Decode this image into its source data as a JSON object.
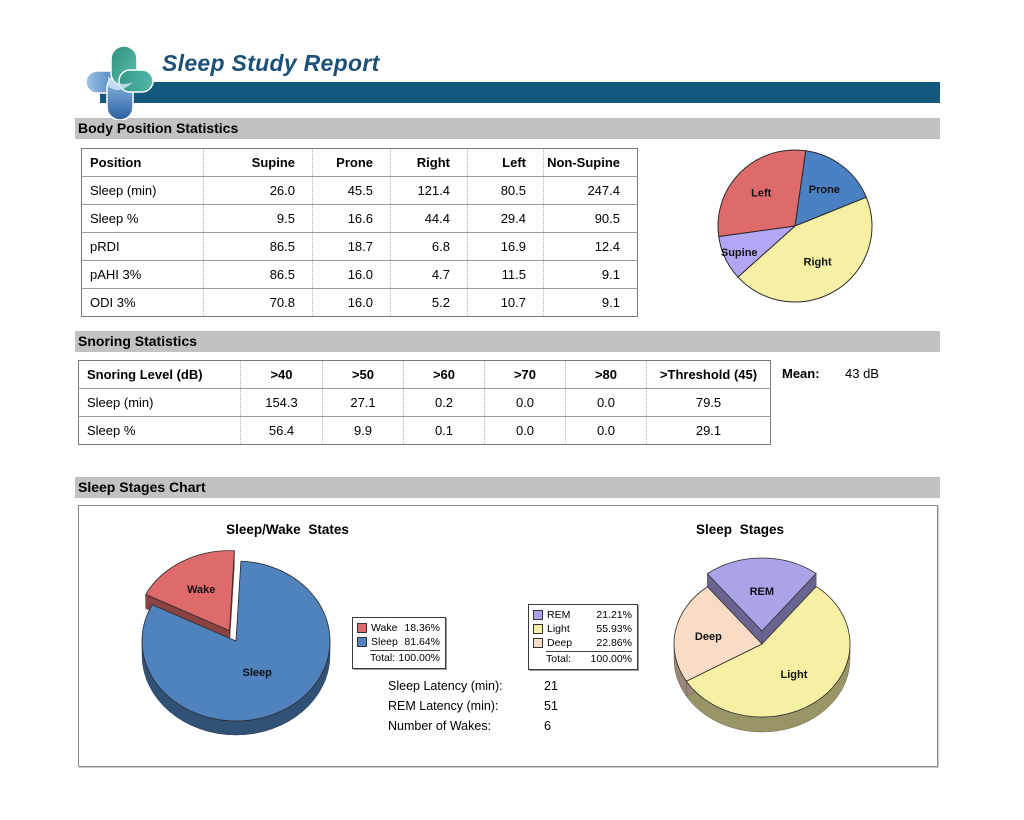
{
  "header": {
    "title": "Sleep Study Report"
  },
  "sections": {
    "body_position": {
      "heading": "Body Position Statistics",
      "table": {
        "columns": [
          "Position",
          "Supine",
          "Prone",
          "Right",
          "Left",
          "Non-Supine"
        ],
        "rows": [
          [
            "Sleep (min)",
            "26.0",
            "45.5",
            "121.4",
            "80.5",
            "247.4"
          ],
          [
            "Sleep %",
            "9.5",
            "16.6",
            "44.4",
            "29.4",
            "90.5"
          ],
          [
            "pRDI",
            "86.5",
            "18.7",
            "6.8",
            "16.9",
            "12.4"
          ],
          [
            "pAHI 3%",
            "86.5",
            "16.0",
            "4.7",
            "11.5",
            "9.1"
          ],
          [
            "ODI 3%",
            "70.8",
            "16.0",
            "5.2",
            "10.7",
            "9.1"
          ]
        ]
      }
    },
    "snoring": {
      "heading": "Snoring Statistics",
      "table": {
        "columns": [
          "Snoring Level (dB)",
          ">40",
          ">50",
          ">60",
          ">70",
          ">80",
          ">Threshold (45)"
        ],
        "rows": [
          [
            "Sleep (min)",
            "154.3",
            "27.1",
            "0.2",
            "0.0",
            "0.0",
            "79.5"
          ],
          [
            "Sleep %",
            "56.4",
            "9.9",
            "0.1",
            "0.0",
            "0.0",
            "29.1"
          ]
        ]
      },
      "mean_label": "Mean:",
      "mean_value": "43 dB"
    },
    "sleep_stages": {
      "heading": "Sleep Stages Chart",
      "left_title": "Sleep/Wake States",
      "right_title": "Sleep Stages",
      "legends": {
        "sleep_wake": {
          "rows": [
            {
              "label": "Wake",
              "pct": "18.36%",
              "color": "#DE6A6C"
            },
            {
              "label": "Sleep",
              "pct": "81.64%",
              "color": "#5082BE"
            }
          ],
          "total_label": "Total:",
          "total_pct": "100.00%"
        },
        "stages": {
          "rows": [
            {
              "label": "REM",
              "pct": "21.21%",
              "color": "#ABA3E8"
            },
            {
              "label": "Light",
              "pct": "55.93%",
              "color": "#F6F0A5"
            },
            {
              "label": "Deep",
              "pct": "22.86%",
              "color": "#F9DCC5"
            }
          ],
          "total_label": "Total:",
          "total_pct": "100.00%"
        }
      },
      "stats": [
        {
          "label": "Sleep Latency (min):",
          "value": "21"
        },
        {
          "label": "REM Latency (min):",
          "value": "51"
        },
        {
          "label": "Number of Wakes:",
          "value": "6"
        }
      ]
    }
  },
  "chart_data": [
    {
      "id": "body-position-pie",
      "type": "pie",
      "title": "Body Position (Sleep %)",
      "slices": [
        {
          "label": "Prone",
          "value": 16.6,
          "color": "#4B80C2"
        },
        {
          "label": "Right",
          "value": 44.4,
          "color": "#F6F0A5"
        },
        {
          "label": "Supine",
          "value": 9.5,
          "color": "#B3A6F5"
        },
        {
          "label": "Left",
          "value": 29.4,
          "color": "#DE6A6C"
        }
      ]
    },
    {
      "id": "sleep-wake-pie",
      "type": "pie",
      "title": "Sleep/Wake States",
      "slices": [
        {
          "label": "Sleep",
          "value": 81.64,
          "color": "#5082BE"
        },
        {
          "label": "Wake",
          "value": 18.36,
          "color": "#DE6A6C",
          "exploded": true
        }
      ]
    },
    {
      "id": "sleep-stages-pie",
      "type": "pie",
      "title": "Sleep Stages",
      "slices": [
        {
          "label": "Light",
          "value": 55.93,
          "color": "#F6F0A5"
        },
        {
          "label": "Deep",
          "value": 22.86,
          "color": "#F9DCC5"
        },
        {
          "label": "REM",
          "value": 21.21,
          "color": "#ABA3E8",
          "exploded": true
        }
      ]
    }
  ]
}
